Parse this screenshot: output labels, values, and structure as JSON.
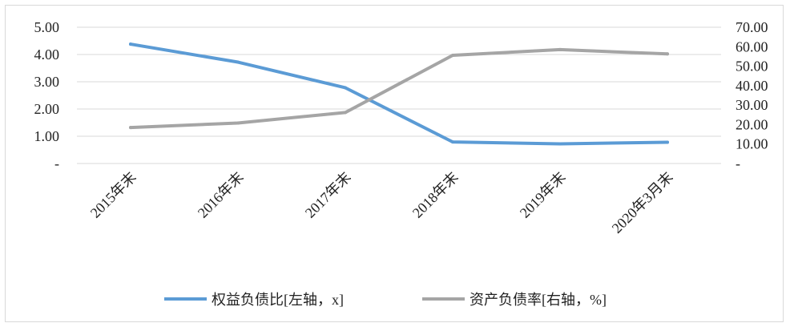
{
  "chart_data": {
    "type": "line",
    "categories": [
      "2015年末",
      "2016年末",
      "2017年末",
      "2018年末",
      "2019年末",
      "2020年3月末"
    ],
    "series": [
      {
        "name": "权益负债比[左轴，x]",
        "axis": "left",
        "color": "#5b9bd5",
        "values": [
          4.38,
          3.72,
          2.78,
          0.79,
          0.72,
          0.78
        ]
      },
      {
        "name": "资产负债率[右轴，%]",
        "axis": "right",
        "color": "#a5a5a5",
        "values": [
          18.5,
          20.8,
          26.2,
          55.6,
          58.5,
          56.3
        ]
      }
    ],
    "left_axis": {
      "ylim": [
        0,
        5
      ],
      "ticks": [
        "-",
        "1.00",
        "2.00",
        "3.00",
        "4.00",
        "5.00"
      ]
    },
    "right_axis": {
      "ylim": [
        0,
        70
      ],
      "ticks": [
        "-",
        "10.00",
        "20.00",
        "30.00",
        "40.00",
        "50.00",
        "60.00",
        "70.00"
      ]
    },
    "grid": true,
    "legend_position": "bottom"
  }
}
